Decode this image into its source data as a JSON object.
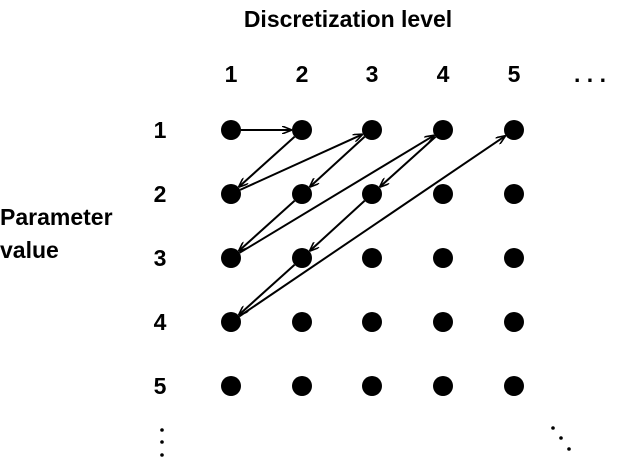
{
  "title": "Discretization level",
  "columns": [
    "1",
    "2",
    "3",
    "4",
    "5"
  ],
  "column_ellipsis": ". . .",
  "rows": [
    "1",
    "2",
    "3",
    "4",
    "5"
  ],
  "row_label_line1": "Parameter",
  "row_label_line2": "value",
  "grid": {
    "n_rows": 5,
    "n_cols": 5
  },
  "traversal_path": [
    [
      1,
      1
    ],
    [
      1,
      2
    ],
    [
      2,
      1
    ],
    [
      1,
      3
    ],
    [
      2,
      2
    ],
    [
      3,
      1
    ],
    [
      1,
      4
    ],
    [
      2,
      3
    ],
    [
      3,
      2
    ],
    [
      4,
      1
    ],
    [
      1,
      5
    ]
  ],
  "colors": {
    "foreground": "#000000",
    "background": "#ffffff"
  }
}
